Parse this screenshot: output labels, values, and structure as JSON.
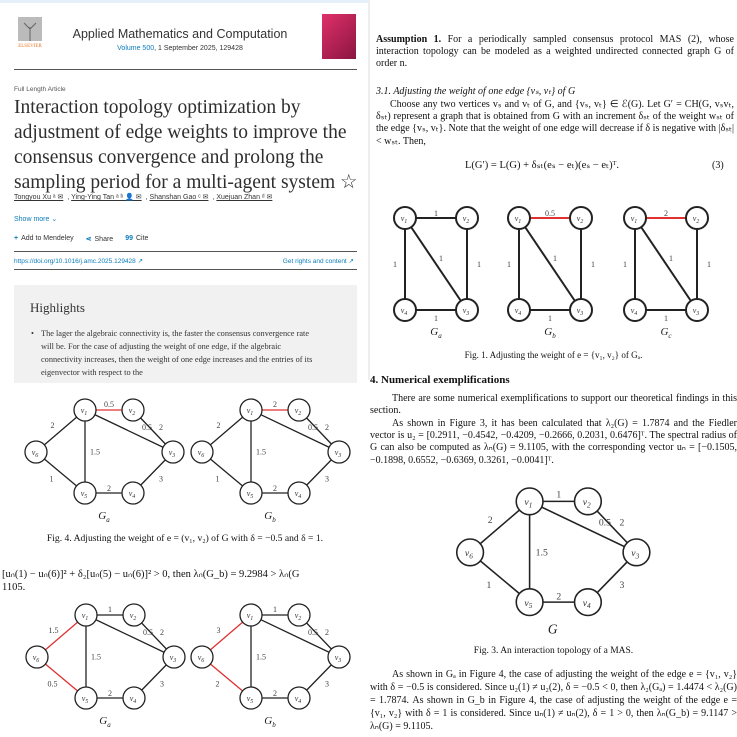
{
  "article": {
    "publisher": "ELSEVIER",
    "journal": "Applied Mathematics and Computation",
    "volume_link": "Volume 500",
    "volume_rest": ", 1 September 2025, 129428",
    "article_type": "Full Length Article",
    "title": "Interaction topology optimization by adjustment of edge weights to improve the consensus convergence and prolong the sampling period for a multi-agent system ☆",
    "authors": [
      "Tongyou Xu ᵃ ✉",
      "Ying-Ying Tan ᵃ ᵇ 👤 ✉",
      "Shanshan Gao ᶜ ✉",
      "Xuejuan Zhan ᵈ ✉"
    ],
    "show_more": "Show more ⌄",
    "actions": [
      {
        "icon": "plus-icon",
        "glyph": "+",
        "label": "Add to Mendeley"
      },
      {
        "icon": "share-icon",
        "glyph": "⋖",
        "label": "Share"
      },
      {
        "icon": "quote-icon",
        "glyph": "99",
        "label": "Cite"
      }
    ],
    "doi": "https://doi.org/10.1016/j.amc.2025.129428 ↗",
    "rights": "Get rights and content ↗"
  },
  "highlights": {
    "heading": "Highlights",
    "items": [
      "The lager the algebraic connectivity is, the faster the consensus convergence rate will be. For the case of adjusting the weight of one edge, if the algebraic connectivity increases, then the weight of one edge increases and the entries of its eigenvector with respect to the"
    ]
  },
  "right_top": {
    "assumption_label": "Assumption 1.",
    "assumption_text": " For a periodically sampled consensus protocol MAS (2), whose interaction topology can be modeled as a weighted undirected connected graph G of order n.",
    "subsection": "3.1. Adjusting the weight of one edge {vₛ, vₜ} of G",
    "para": "Choose any two vertices vₛ and vₜ of G, and {vₛ, vₜ} ∈ ℰ(G). Let G′ = CH(G, vₛvₜ, δₛₜ) represent a graph that is obtained from G with an increment δₛₜ of the weight wₛₜ of the edge {vₛ, vₜ}. Note that the weight of one edge will decrease if δ is negative with |δₛₜ| < wₛₜ. Then,",
    "equation": "L(G′) = L(G) + δₛₜ(eₛ − eₜ)(eₛ − eₜ)ᵀ.",
    "eq_number": "(3)"
  },
  "fig1": {
    "caption": "Fig. 1. Adjusting the weight of e = {v₁, v₂} of Gₐ.",
    "nodes": [
      "v1",
      "v2",
      "v3",
      "v4"
    ],
    "graphs": [
      {
        "label": "Ga",
        "edges": [
          {
            "from": 1,
            "to": 2,
            "weight": "1",
            "highlight": false
          },
          {
            "from": 2,
            "to": 3,
            "weight": "1",
            "highlight": false
          },
          {
            "from": 1,
            "to": 3,
            "weight": "1",
            "highlight": false
          },
          {
            "from": 1,
            "to": 4,
            "weight": "1",
            "highlight": false
          },
          {
            "from": 4,
            "to": 3,
            "weight": "1",
            "highlight": false
          }
        ]
      },
      {
        "label": "Gb",
        "edges": [
          {
            "from": 1,
            "to": 2,
            "weight": "0.5",
            "highlight": true
          },
          {
            "from": 2,
            "to": 3,
            "weight": "1",
            "highlight": false
          },
          {
            "from": 1,
            "to": 3,
            "weight": "1",
            "highlight": false
          },
          {
            "from": 1,
            "to": 4,
            "weight": "1",
            "highlight": false
          },
          {
            "from": 4,
            "to": 3,
            "weight": "1",
            "highlight": false
          }
        ]
      },
      {
        "label": "Gc",
        "edges": [
          {
            "from": 1,
            "to": 2,
            "weight": "2",
            "highlight": true
          },
          {
            "from": 2,
            "to": 3,
            "weight": "1",
            "highlight": false
          },
          {
            "from": 1,
            "to": 3,
            "weight": "1",
            "highlight": false
          },
          {
            "from": 1,
            "to": 4,
            "weight": "1",
            "highlight": false
          },
          {
            "from": 4,
            "to": 3,
            "weight": "1",
            "highlight": false
          }
        ]
      }
    ]
  },
  "section4": {
    "heading": "4.  Numerical exemplifications",
    "p1": "There are some numerical exemplifications to support our theoretical findings in this section.",
    "p2": "As shown in Figure 3, it has been calculated that λ₂(G) = 1.7874 and the Fiedler vector is u₂ = [0.2911, −0.4542, −0.4209, −0.2666, 0.2031, 0.6476]ᵀ. The spectral radius of G can also be computed as λₙ(G) = 9.1105, with the corresponding vector uₙ = [−0.1505, −0.1898, 0.6552, −0.6369, 0.3261, −0.0041]ᵀ."
  },
  "fig3": {
    "caption": "Fig. 3. An interaction topology of a MAS.",
    "nodes": [
      "v1",
      "v2",
      "v3",
      "v4",
      "v5",
      "v6"
    ],
    "graph": {
      "label": "G",
      "edges": [
        {
          "from": 1,
          "to": 2,
          "weight": "1",
          "highlight": false
        },
        {
          "from": 2,
          "to": 3,
          "weight": "2",
          "highlight": false
        },
        {
          "from": 1,
          "to": 3,
          "weight": "0.5",
          "highlight": false
        },
        {
          "from": 1,
          "to": 5,
          "weight": "1.5",
          "highlight": false
        },
        {
          "from": 1,
          "to": 6,
          "weight": "2",
          "highlight": false
        },
        {
          "from": 6,
          "to": 5,
          "weight": "1",
          "highlight": false
        },
        {
          "from": 5,
          "to": 4,
          "weight": "2",
          "highlight": false
        },
        {
          "from": 4,
          "to": 3,
          "weight": "3",
          "highlight": false
        }
      ]
    }
  },
  "right_bottom": {
    "para": "As shown in Gₐ in Figure 4, the case of adjusting the weight of the edge e = {v₁, v₂} with δ = −0.5 is considered. Since u₂(1) ≠ u₂(2), δ = −0.5 < 0, then λ₂(Gₐ) = 1.4474 < λ₂(G) = 1.7874. As shown in G_b in Figure 4, the case of adjusting the weight of the edge e = {v₁, v₂} with δ = 1 is considered. Since uₙ(1) ≠ uₙ(2), δ = 1 > 0, then λₙ(G_b) = 9.1147 > λₙ(G) = 9.1105."
  },
  "fig4": {
    "caption": "Fig. 4. Adjusting the weight of e = (v₁, v₂) of G with δ = −0.5 and δ = 1.",
    "nodes": [
      "v1",
      "v2",
      "v3",
      "v4",
      "v5",
      "v6"
    ],
    "graphs": [
      {
        "label": "Ga",
        "edges": [
          {
            "from": 1,
            "to": 2,
            "weight": "0.5",
            "highlight": true
          },
          {
            "from": 2,
            "to": 3,
            "weight": "2",
            "highlight": false
          },
          {
            "from": 1,
            "to": 3,
            "weight": "0.5",
            "highlight": false
          },
          {
            "from": 1,
            "to": 5,
            "weight": "1.5",
            "highlight": false
          },
          {
            "from": 1,
            "to": 6,
            "weight": "2",
            "highlight": false
          },
          {
            "from": 6,
            "to": 5,
            "weight": "1",
            "highlight": false
          },
          {
            "from": 5,
            "to": 4,
            "weight": "2",
            "highlight": false
          },
          {
            "from": 4,
            "to": 3,
            "weight": "3",
            "highlight": false
          }
        ]
      },
      {
        "label": "Gb",
        "edges": [
          {
            "from": 1,
            "to": 2,
            "weight": "2",
            "highlight": true
          },
          {
            "from": 2,
            "to": 3,
            "weight": "2",
            "highlight": false
          },
          {
            "from": 1,
            "to": 3,
            "weight": "0.5",
            "highlight": false
          },
          {
            "from": 1,
            "to": 5,
            "weight": "1.5",
            "highlight": false
          },
          {
            "from": 1,
            "to": 6,
            "weight": "2",
            "highlight": false
          },
          {
            "from": 6,
            "to": 5,
            "weight": "1",
            "highlight": false
          },
          {
            "from": 5,
            "to": 4,
            "weight": "2",
            "highlight": false
          },
          {
            "from": 4,
            "to": 3,
            "weight": "3",
            "highlight": false
          }
        ]
      }
    ]
  },
  "mid_text": {
    "line1": "[uₙ(1) − uₙ(6)]² + δ₂[uₙ(5) − uₙ(6)]² > 0, then λₙ(G_b) = 9.2984 > λₙ(G",
    "line2": "1105."
  },
  "fig5": {
    "nodes": [
      "v1",
      "v2",
      "v3",
      "v4",
      "v5",
      "v6"
    ],
    "graphs": [
      {
        "label": "Ga",
        "edges": [
          {
            "from": 1,
            "to": 2,
            "weight": "1",
            "highlight": false
          },
          {
            "from": 2,
            "to": 3,
            "weight": "2",
            "highlight": false
          },
          {
            "from": 1,
            "to": 3,
            "weight": "0.5",
            "highlight": false
          },
          {
            "from": 1,
            "to": 5,
            "weight": "1.5",
            "highlight": false
          },
          {
            "from": 1,
            "to": 6,
            "weight": "1.5",
            "highlight": true
          },
          {
            "from": 6,
            "to": 5,
            "weight": "0.5",
            "highlight": true
          },
          {
            "from": 5,
            "to": 4,
            "weight": "2",
            "highlight": false
          },
          {
            "from": 4,
            "to": 3,
            "weight": "3",
            "highlight": false
          }
        ]
      },
      {
        "label": "Gb",
        "edges": [
          {
            "from": 1,
            "to": 2,
            "weight": "1",
            "highlight": false
          },
          {
            "from": 2,
            "to": 3,
            "weight": "2",
            "highlight": false
          },
          {
            "from": 1,
            "to": 3,
            "weight": "0.5",
            "highlight": false
          },
          {
            "from": 1,
            "to": 5,
            "weight": "1.5",
            "highlight": false
          },
          {
            "from": 1,
            "to": 6,
            "weight": "3",
            "highlight": true
          },
          {
            "from": 6,
            "to": 5,
            "weight": "2",
            "highlight": true
          },
          {
            "from": 5,
            "to": 4,
            "weight": "2",
            "highlight": false
          },
          {
            "from": 4,
            "to": 3,
            "weight": "3",
            "highlight": false
          }
        ]
      }
    ]
  },
  "colors": {
    "link": "#0c7dbb",
    "highlight_edge": "#e03030",
    "highlight_bg": "#f1f1f1",
    "ref_box": "#e03030"
  }
}
